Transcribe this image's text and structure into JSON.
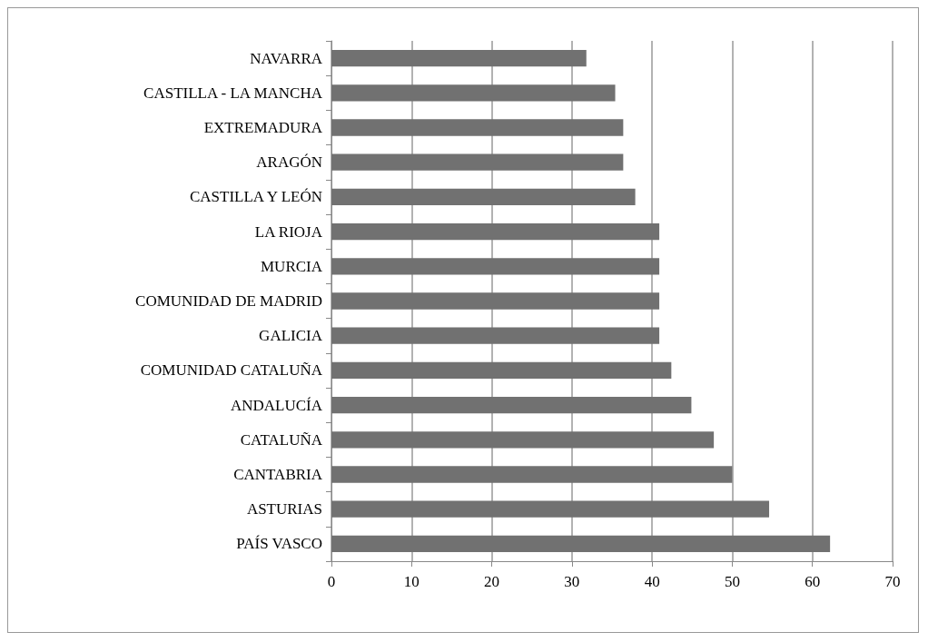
{
  "chart_data": {
    "type": "bar",
    "orientation": "horizontal",
    "categories": [
      "NAVARRA",
      "CASTILLA - LA MANCHA",
      "EXTREMADURA",
      "ARAGÓN",
      "CASTILLA Y LEÓN",
      "LA RIOJA",
      "MURCIA",
      "COMUNIDAD DE MADRID",
      "GALICIA",
      "COMUNIDAD CATALUÑA",
      "ANDALUCÍA",
      "CATALUÑA",
      "CANTABRIA",
      "ASTURIAS",
      "PAÍS VASCO"
    ],
    "values": [
      31.8,
      35.4,
      36.4,
      36.4,
      37.9,
      40.9,
      40.9,
      40.9,
      40.9,
      42.4,
      44.9,
      47.7,
      50.0,
      54.6,
      62.2
    ],
    "color": "#717171",
    "xlim": [
      0,
      70
    ],
    "xticks": [
      0,
      10,
      20,
      30,
      40,
      50,
      60,
      70
    ],
    "grid": "x"
  }
}
